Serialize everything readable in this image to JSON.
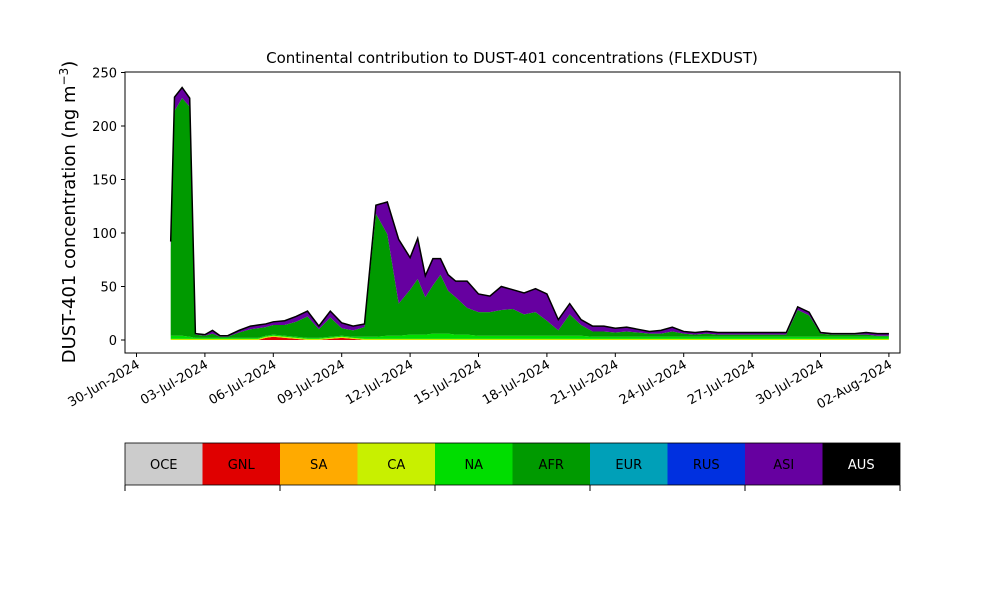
{
  "chart_data": {
    "type": "area",
    "title": "Continental contribution to DUST-401 concentrations (FLEXDUST)",
    "ylabel": "DUST-401 concentration (ng m",
    "ylabel_superscript": "−3",
    "ylabel_close": ")",
    "xlabel": "",
    "ylim": [
      0,
      250
    ],
    "yticks": [
      "0",
      "50",
      "100",
      "150",
      "200",
      "250"
    ],
    "xlim": [
      "2024-06-30",
      "2024-08-03"
    ],
    "xticks": [
      "30-Jun-2024",
      "03-Jul-2024",
      "06-Jul-2024",
      "09-Jul-2024",
      "12-Jul-2024",
      "15-Jul-2024",
      "18-Jul-2024",
      "21-Jul-2024",
      "24-Jul-2024",
      "27-Jul-2024",
      "30-Jul-2024",
      "02-Aug-2024"
    ],
    "x": [
      "2024-07-01 12:00",
      "2024-07-01 16:00",
      "2024-07-02 00:00",
      "2024-07-02 08:00",
      "2024-07-02 14:00",
      "2024-07-03 00:00",
      "2024-07-03 08:00",
      "2024-07-03 16:00",
      "2024-07-04 00:00",
      "2024-07-04 12:00",
      "2024-07-05 00:00",
      "2024-07-05 08:00",
      "2024-07-05 16:00",
      "2024-07-06 00:00",
      "2024-07-06 12:00",
      "2024-07-07 00:00",
      "2024-07-07 12:00",
      "2024-07-08 00:00",
      "2024-07-08 12:00",
      "2024-07-09 00:00",
      "2024-07-09 12:00",
      "2024-07-10 00:00",
      "2024-07-10 12:00",
      "2024-07-11 00:00",
      "2024-07-11 12:00",
      "2024-07-12 00:00",
      "2024-07-12 08:00",
      "2024-07-12 16:00",
      "2024-07-13 00:00",
      "2024-07-13 08:00",
      "2024-07-13 16:00",
      "2024-07-14 00:00",
      "2024-07-14 12:00",
      "2024-07-15 00:00",
      "2024-07-15 12:00",
      "2024-07-16 00:00",
      "2024-07-16 12:00",
      "2024-07-17 00:00",
      "2024-07-17 12:00",
      "2024-07-18 00:00",
      "2024-07-18 12:00",
      "2024-07-19 00:00",
      "2024-07-19 12:00",
      "2024-07-20 00:00",
      "2024-07-20 12:00",
      "2024-07-21 00:00",
      "2024-07-21 12:00",
      "2024-07-22 00:00",
      "2024-07-22 12:00",
      "2024-07-23 00:00",
      "2024-07-23 12:00",
      "2024-07-24 00:00",
      "2024-07-24 12:00",
      "2024-07-25 00:00",
      "2024-07-25 12:00",
      "2024-07-26 00:00",
      "2024-07-26 12:00",
      "2024-07-27 00:00",
      "2024-07-27 12:00",
      "2024-07-28 00:00",
      "2024-07-28 12:00",
      "2024-07-29 00:00",
      "2024-07-29 12:00",
      "2024-07-30 00:00",
      "2024-07-30 12:00",
      "2024-07-31 00:00",
      "2024-07-31 12:00",
      "2024-08-01 00:00",
      "2024-08-01 12:00",
      "2024-08-02 00:00"
    ],
    "series": [
      {
        "name": "OCE",
        "color": "#cccccc",
        "values": [
          0,
          0,
          0,
          0,
          0,
          0,
          0,
          0,
          0,
          0,
          0,
          0,
          0,
          0,
          0,
          0,
          0,
          0,
          0,
          0,
          0,
          0,
          0,
          0,
          0,
          0,
          0,
          0,
          0,
          0,
          0,
          0,
          0,
          0,
          0,
          0,
          0,
          0,
          0,
          0,
          0,
          0,
          0,
          0,
          0,
          0,
          0,
          0,
          0,
          0,
          0,
          0,
          0,
          0,
          0,
          0,
          0,
          0,
          0,
          0,
          0,
          0,
          0,
          0,
          0,
          0,
          0,
          0,
          0,
          0
        ]
      },
      {
        "name": "GNL",
        "color": "#e00000",
        "values": [
          0,
          0,
          0,
          0,
          0,
          0,
          0,
          0,
          0,
          0,
          0,
          0,
          2,
          3,
          2,
          1,
          0,
          0,
          1,
          2,
          1,
          0,
          0,
          0,
          0,
          0,
          0,
          0,
          0,
          0,
          0,
          0,
          0,
          0,
          0,
          0,
          0,
          0,
          0,
          0,
          0,
          0,
          0,
          0,
          0,
          0,
          0,
          0,
          0,
          0,
          0,
          0,
          0,
          0,
          0,
          0,
          0,
          0,
          0,
          0,
          0,
          0,
          0,
          0,
          0,
          0,
          0,
          0,
          0,
          0
        ]
      },
      {
        "name": "SA",
        "color": "#ffaa00",
        "values": [
          0,
          0,
          0,
          0,
          0,
          0,
          0,
          0,
          0,
          0,
          0,
          0,
          0,
          0,
          0,
          0,
          0,
          0,
          0,
          0,
          0,
          0,
          0,
          0,
          0,
          0,
          0,
          0,
          0,
          0,
          0,
          0,
          0,
          0,
          0,
          0,
          0,
          0,
          0,
          0,
          0,
          0,
          0,
          0,
          0,
          0,
          0,
          0,
          0,
          0,
          0,
          0,
          0,
          0,
          0,
          0,
          0,
          0,
          0,
          0,
          0,
          0,
          0,
          0,
          0,
          0,
          0,
          0,
          0,
          0
        ]
      },
      {
        "name": "CA",
        "color": "#c8f000",
        "values": [
          1,
          1,
          1,
          1,
          1,
          1,
          1,
          1,
          1,
          1,
          1,
          1,
          1,
          1,
          1,
          1,
          1,
          1,
          1,
          1,
          1,
          1,
          1,
          1,
          1,
          1,
          1,
          1,
          1,
          1,
          1,
          1,
          1,
          1,
          1,
          1,
          1,
          1,
          1,
          1,
          1,
          1,
          1,
          1,
          1,
          1,
          1,
          1,
          1,
          1,
          1,
          1,
          1,
          1,
          1,
          1,
          1,
          1,
          1,
          1,
          1,
          1,
          1,
          1,
          1,
          1,
          1,
          1,
          1,
          1
        ]
      },
      {
        "name": "NA",
        "color": "#00dd00",
        "values": [
          3,
          3,
          3,
          2,
          1,
          1,
          1,
          1,
          1,
          1,
          1,
          1,
          1,
          1,
          1,
          1,
          1,
          1,
          1,
          1,
          1,
          2,
          2,
          3,
          3,
          4,
          4,
          4,
          5,
          5,
          5,
          4,
          4,
          3,
          3,
          3,
          3,
          3,
          3,
          3,
          3,
          3,
          3,
          2,
          2,
          2,
          2,
          2,
          2,
          2,
          2,
          2,
          2,
          2,
          2,
          2,
          2,
          2,
          2,
          2,
          2,
          2,
          2,
          2,
          2,
          2,
          2,
          2,
          2,
          2
        ]
      },
      {
        "name": "AFR",
        "color": "#009a00",
        "values": [
          80,
          210,
          222,
          215,
          3,
          2,
          4,
          1,
          1,
          5,
          8,
          9,
          8,
          9,
          10,
          14,
          20,
          8,
          18,
          7,
          6,
          9,
          115,
          95,
          30,
          42,
          52,
          35,
          45,
          55,
          40,
          35,
          25,
          22,
          22,
          24,
          25,
          20,
          22,
          14,
          5,
          20,
          10,
          5,
          5,
          4,
          5,
          4,
          3,
          3,
          5,
          3,
          2,
          3,
          2,
          2,
          2,
          2,
          2,
          2,
          2,
          25,
          20,
          3,
          2,
          2,
          2,
          2,
          1,
          1
        ]
      },
      {
        "name": "EUR",
        "color": "#00a0b8",
        "values": [
          0,
          0,
          0,
          0,
          0,
          0,
          0,
          0,
          0,
          0,
          0,
          0,
          0,
          0,
          0,
          0,
          0,
          0,
          0,
          0,
          0,
          0,
          0,
          0,
          0,
          0,
          0,
          0,
          0,
          0,
          0,
          0,
          0,
          0,
          0,
          0,
          0,
          0,
          0,
          0,
          0,
          0,
          0,
          0,
          0,
          0,
          0,
          0,
          0,
          0,
          0,
          0,
          0,
          0,
          0,
          0,
          0,
          0,
          0,
          0,
          0,
          0,
          0,
          0,
          0,
          0,
          0,
          0,
          0,
          0
        ]
      },
      {
        "name": "RUS",
        "color": "#0030e0",
        "values": [
          0,
          0,
          0,
          0,
          0,
          0,
          0,
          0,
          0,
          0,
          0,
          0,
          0,
          0,
          0,
          0,
          0,
          0,
          0,
          0,
          0,
          0,
          0,
          0,
          0,
          0,
          0,
          0,
          0,
          0,
          0,
          0,
          0,
          0,
          0,
          0,
          0,
          0,
          0,
          0,
          0,
          0,
          0,
          0,
          0,
          0,
          0,
          0,
          0,
          0,
          0,
          0,
          0,
          0,
          0,
          0,
          0,
          0,
          0,
          0,
          0,
          0,
          0,
          0,
          0,
          0,
          0,
          0,
          0,
          0
        ]
      },
      {
        "name": "ASI",
        "color": "#6600a0",
        "values": [
          8,
          13,
          10,
          8,
          1,
          1,
          3,
          1,
          1,
          2,
          3,
          3,
          3,
          3,
          4,
          5,
          5,
          3,
          6,
          5,
          4,
          3,
          8,
          30,
          60,
          30,
          38,
          20,
          25,
          15,
          15,
          15,
          25,
          17,
          15,
          22,
          18,
          20,
          22,
          25,
          10,
          10,
          5,
          5,
          5,
          4,
          4,
          3,
          2,
          3,
          4,
          2,
          2,
          2,
          2,
          2,
          2,
          2,
          2,
          2,
          2,
          3,
          3,
          1,
          1,
          1,
          1,
          2,
          2,
          2
        ]
      },
      {
        "name": "AUS",
        "color": "#000000",
        "values": [
          0,
          0,
          0,
          0,
          0,
          0,
          0,
          0,
          0,
          0,
          0,
          0,
          0,
          0,
          0,
          0,
          0,
          0,
          0,
          0,
          0,
          0,
          0,
          0,
          0,
          0,
          0,
          0,
          0,
          0,
          0,
          0,
          0,
          0,
          0,
          0,
          0,
          0,
          0,
          0,
          0,
          0,
          0,
          0,
          0,
          0,
          0,
          0,
          0,
          0,
          0,
          0,
          0,
          0,
          0,
          0,
          0,
          0,
          0,
          0,
          0,
          0,
          0,
          0,
          0,
          0,
          0,
          0,
          0,
          0
        ]
      }
    ],
    "legend": [
      "OCE",
      "GNL",
      "SA",
      "CA",
      "NA",
      "AFR",
      "EUR",
      "RUS",
      "ASI",
      "AUS"
    ],
    "legend_placement": "bottom",
    "grid": false
  }
}
